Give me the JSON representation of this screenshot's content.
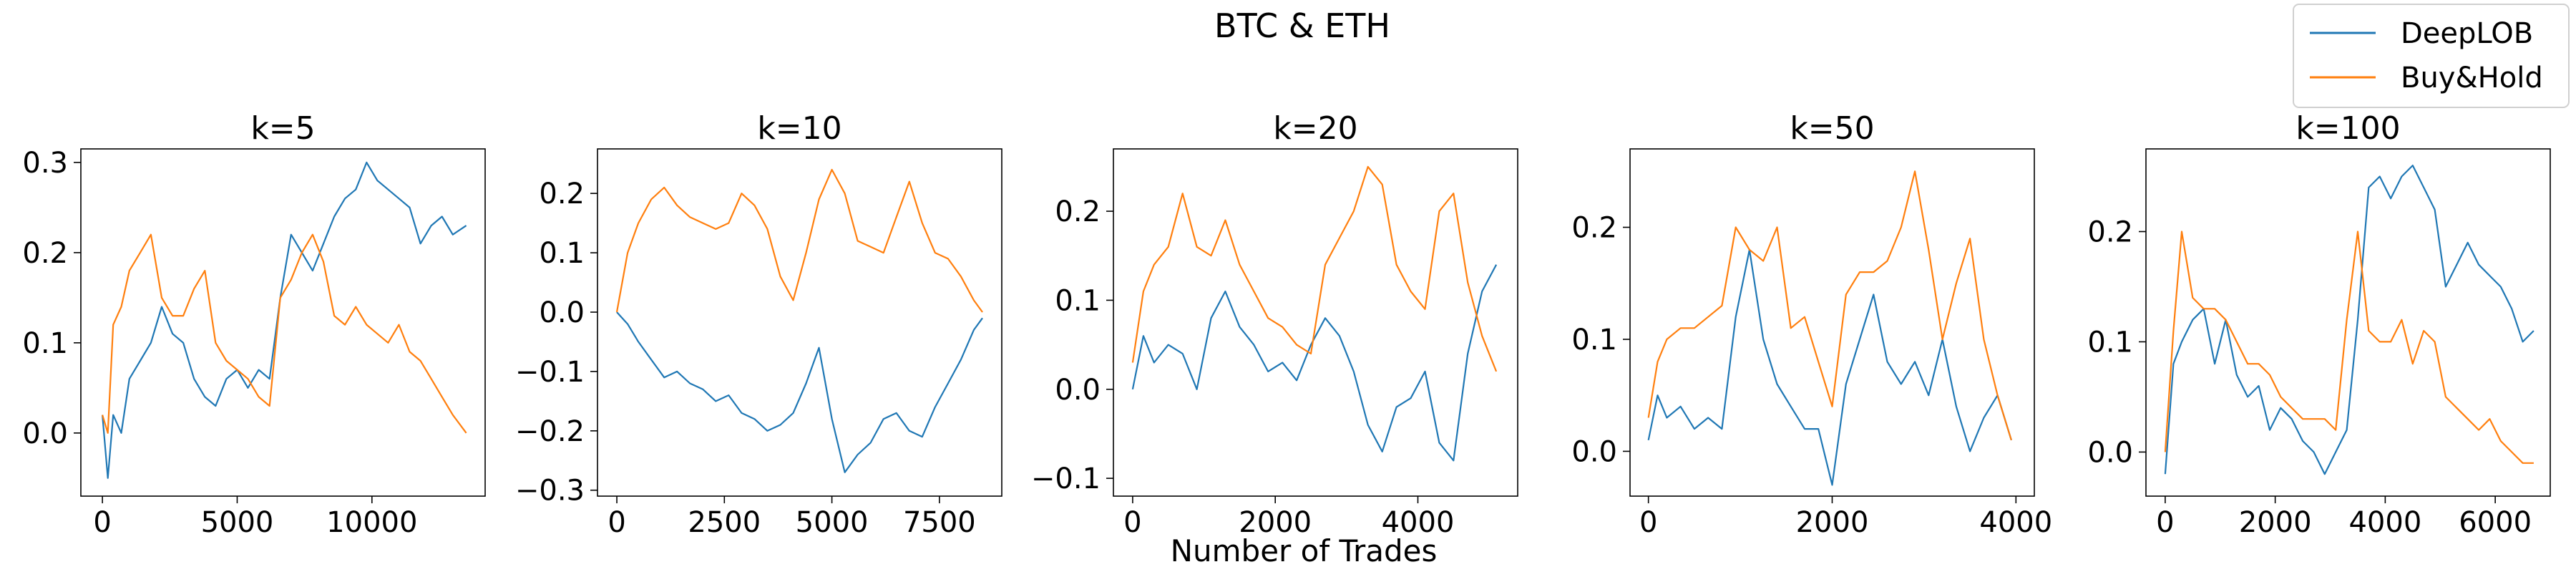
{
  "figure": {
    "title": "BTC & ETH",
    "xlabel": "Number of Trades",
    "legend": {
      "placement": "top-right",
      "entries": [
        {
          "name": "DeepLOB",
          "color": "#1f77b4"
        },
        {
          "name": "Buy&Hold",
          "color": "#ff7f0e"
        }
      ]
    }
  },
  "chart_data": [
    {
      "type": "line",
      "title": "k=5",
      "xlim": [
        -800,
        14200
      ],
      "ylim": [
        -0.07,
        0.315
      ],
      "xticks": [
        0,
        5000,
        10000
      ],
      "yticks": [
        0.0,
        0.1,
        0.2,
        0.3
      ],
      "ytick_labels": [
        "0.0",
        "0.1",
        "0.2",
        "0.3"
      ],
      "series": [
        {
          "name": "DeepLOB",
          "color": "#1f77b4",
          "x": [
            0,
            200,
            400,
            700,
            1000,
            1400,
            1800,
            2200,
            2600,
            3000,
            3400,
            3800,
            4200,
            4600,
            5000,
            5400,
            5800,
            6200,
            6600,
            7000,
            7400,
            7800,
            8200,
            8600,
            9000,
            9400,
            9800,
            10200,
            10600,
            11000,
            11400,
            11800,
            12200,
            12600,
            13000,
            13500
          ],
          "y": [
            0.02,
            -0.05,
            0.02,
            0.0,
            0.06,
            0.08,
            0.1,
            0.14,
            0.11,
            0.1,
            0.06,
            0.04,
            0.03,
            0.06,
            0.07,
            0.05,
            0.07,
            0.06,
            0.15,
            0.22,
            0.2,
            0.18,
            0.21,
            0.24,
            0.26,
            0.27,
            0.3,
            0.28,
            0.27,
            0.26,
            0.25,
            0.21,
            0.23,
            0.24,
            0.22,
            0.23
          ]
        },
        {
          "name": "Buy&Hold",
          "color": "#ff7f0e",
          "x": [
            0,
            200,
            400,
            700,
            1000,
            1400,
            1800,
            2200,
            2600,
            3000,
            3400,
            3800,
            4200,
            4600,
            5000,
            5400,
            5800,
            6200,
            6600,
            7000,
            7400,
            7800,
            8200,
            8600,
            9000,
            9400,
            9800,
            10200,
            10600,
            11000,
            11400,
            11800,
            12200,
            12600,
            13000,
            13500
          ],
          "y": [
            0.02,
            0.0,
            0.12,
            0.14,
            0.18,
            0.2,
            0.22,
            0.15,
            0.13,
            0.13,
            0.16,
            0.18,
            0.1,
            0.08,
            0.07,
            0.06,
            0.04,
            0.03,
            0.15,
            0.17,
            0.2,
            0.22,
            0.19,
            0.13,
            0.12,
            0.14,
            0.12,
            0.11,
            0.1,
            0.12,
            0.09,
            0.08,
            0.06,
            0.04,
            0.02,
            0.0
          ]
        }
      ]
    },
    {
      "type": "line",
      "title": "k=10",
      "xlim": [
        -450,
        8950
      ],
      "ylim": [
        -0.31,
        0.275
      ],
      "xticks": [
        0,
        2500,
        5000,
        7500
      ],
      "yticks": [
        -0.3,
        -0.2,
        -0.1,
        0.0,
        0.1,
        0.2
      ],
      "ytick_labels": [
        "−0.3",
        "−0.2",
        "−0.1",
        "0.0",
        "0.1",
        "0.2"
      ],
      "series": [
        {
          "name": "DeepLOB",
          "color": "#1f77b4",
          "x": [
            0,
            250,
            500,
            800,
            1100,
            1400,
            1700,
            2000,
            2300,
            2600,
            2900,
            3200,
            3500,
            3800,
            4100,
            4400,
            4700,
            5000,
            5300,
            5600,
            5900,
            6200,
            6500,
            6800,
            7100,
            7400,
            7700,
            8000,
            8300,
            8500
          ],
          "y": [
            0.0,
            -0.02,
            -0.05,
            -0.08,
            -0.11,
            -0.1,
            -0.12,
            -0.13,
            -0.15,
            -0.14,
            -0.17,
            -0.18,
            -0.2,
            -0.19,
            -0.17,
            -0.12,
            -0.06,
            -0.18,
            -0.27,
            -0.24,
            -0.22,
            -0.18,
            -0.17,
            -0.2,
            -0.21,
            -0.16,
            -0.12,
            -0.08,
            -0.03,
            -0.01
          ]
        },
        {
          "name": "Buy&Hold",
          "color": "#ff7f0e",
          "x": [
            0,
            250,
            500,
            800,
            1100,
            1400,
            1700,
            2000,
            2300,
            2600,
            2900,
            3200,
            3500,
            3800,
            4100,
            4400,
            4700,
            5000,
            5300,
            5600,
            5900,
            6200,
            6500,
            6800,
            7100,
            7400,
            7700,
            8000,
            8300,
            8500
          ],
          "y": [
            0.0,
            0.1,
            0.15,
            0.19,
            0.21,
            0.18,
            0.16,
            0.15,
            0.14,
            0.15,
            0.2,
            0.18,
            0.14,
            0.06,
            0.02,
            0.1,
            0.19,
            0.24,
            0.2,
            0.12,
            0.11,
            0.1,
            0.16,
            0.22,
            0.15,
            0.1,
            0.09,
            0.06,
            0.02,
            0.0
          ]
        }
      ]
    },
    {
      "type": "line",
      "title": "k=20",
      "xlim": [
        -270,
        5400
      ],
      "ylim": [
        -0.12,
        0.27
      ],
      "xticks": [
        0,
        2000,
        4000
      ],
      "yticks": [
        -0.1,
        0.0,
        0.1,
        0.2
      ],
      "ytick_labels": [
        "−0.1",
        "0.0",
        "0.1",
        "0.2"
      ],
      "series": [
        {
          "name": "DeepLOB",
          "color": "#1f77b4",
          "x": [
            0,
            150,
            300,
            500,
            700,
            900,
            1100,
            1300,
            1500,
            1700,
            1900,
            2100,
            2300,
            2500,
            2700,
            2900,
            3100,
            3300,
            3500,
            3700,
            3900,
            4100,
            4300,
            4500,
            4700,
            4900,
            5100
          ],
          "y": [
            0.0,
            0.06,
            0.03,
            0.05,
            0.04,
            0.0,
            0.08,
            0.11,
            0.07,
            0.05,
            0.02,
            0.03,
            0.01,
            0.05,
            0.08,
            0.06,
            0.02,
            -0.04,
            -0.07,
            -0.02,
            -0.01,
            0.02,
            -0.06,
            -0.08,
            0.04,
            0.11,
            0.14
          ]
        },
        {
          "name": "Buy&Hold",
          "color": "#ff7f0e",
          "x": [
            0,
            150,
            300,
            500,
            700,
            900,
            1100,
            1300,
            1500,
            1700,
            1900,
            2100,
            2300,
            2500,
            2700,
            2900,
            3100,
            3300,
            3500,
            3700,
            3900,
            4100,
            4300,
            4500,
            4700,
            4900,
            5100
          ],
          "y": [
            0.03,
            0.11,
            0.14,
            0.16,
            0.22,
            0.16,
            0.15,
            0.19,
            0.14,
            0.11,
            0.08,
            0.07,
            0.05,
            0.04,
            0.14,
            0.17,
            0.2,
            0.25,
            0.23,
            0.14,
            0.11,
            0.09,
            0.2,
            0.22,
            0.12,
            0.06,
            0.02
          ]
        }
      ]
    },
    {
      "type": "line",
      "title": "k=50",
      "xlim": [
        -200,
        4200
      ],
      "ylim": [
        -0.04,
        0.27
      ],
      "xticks": [
        0,
        2000,
        4000
      ],
      "yticks": [
        0.0,
        0.1,
        0.2
      ],
      "ytick_labels": [
        "0.0",
        "0.1",
        "0.2"
      ],
      "series": [
        {
          "name": "DeepLOB",
          "color": "#1f77b4",
          "x": [
            0,
            100,
            200,
            350,
            500,
            650,
            800,
            950,
            1100,
            1250,
            1400,
            1550,
            1700,
            1850,
            2000,
            2150,
            2300,
            2450,
            2600,
            2750,
            2900,
            3050,
            3200,
            3350,
            3500,
            3650,
            3800,
            3950
          ],
          "y": [
            0.01,
            0.05,
            0.03,
            0.04,
            0.02,
            0.03,
            0.02,
            0.12,
            0.18,
            0.1,
            0.06,
            0.04,
            0.02,
            0.02,
            -0.03,
            0.06,
            0.1,
            0.14,
            0.08,
            0.06,
            0.08,
            0.05,
            0.1,
            0.04,
            0.0,
            0.03,
            0.05,
            0.01
          ]
        },
        {
          "name": "Buy&Hold",
          "color": "#ff7f0e",
          "x": [
            0,
            100,
            200,
            350,
            500,
            650,
            800,
            950,
            1100,
            1250,
            1400,
            1550,
            1700,
            1850,
            2000,
            2150,
            2300,
            2450,
            2600,
            2750,
            2900,
            3050,
            3200,
            3350,
            3500,
            3650,
            3800,
            3950
          ],
          "y": [
            0.03,
            0.08,
            0.1,
            0.11,
            0.11,
            0.12,
            0.13,
            0.2,
            0.18,
            0.17,
            0.2,
            0.11,
            0.12,
            0.08,
            0.04,
            0.14,
            0.16,
            0.16,
            0.17,
            0.2,
            0.25,
            0.18,
            0.1,
            0.15,
            0.19,
            0.1,
            0.05,
            0.01
          ]
        }
      ]
    },
    {
      "type": "line",
      "title": "k=100",
      "xlim": [
        -350,
        7000
      ],
      "ylim": [
        -0.04,
        0.275
      ],
      "xticks": [
        0,
        2000,
        4000,
        6000
      ],
      "yticks": [
        0.0,
        0.1,
        0.2
      ],
      "ytick_labels": [
        "0.0",
        "0.1",
        "0.2"
      ],
      "series": [
        {
          "name": "DeepLOB",
          "color": "#1f77b4",
          "x": [
            0,
            150,
            300,
            500,
            700,
            900,
            1100,
            1300,
            1500,
            1700,
            1900,
            2100,
            2300,
            2500,
            2700,
            2900,
            3100,
            3300,
            3500,
            3700,
            3900,
            4100,
            4300,
            4500,
            4700,
            4900,
            5100,
            5300,
            5500,
            5700,
            5900,
            6100,
            6300,
            6500,
            6700
          ],
          "y": [
            -0.02,
            0.08,
            0.1,
            0.12,
            0.13,
            0.08,
            0.12,
            0.07,
            0.05,
            0.06,
            0.02,
            0.04,
            0.03,
            0.01,
            0.0,
            -0.02,
            0.0,
            0.02,
            0.12,
            0.24,
            0.25,
            0.23,
            0.25,
            0.26,
            0.24,
            0.22,
            0.15,
            0.17,
            0.19,
            0.17,
            0.16,
            0.15,
            0.13,
            0.1,
            0.11
          ]
        },
        {
          "name": "Buy&Hold",
          "color": "#ff7f0e",
          "x": [
            0,
            150,
            300,
            500,
            700,
            900,
            1100,
            1300,
            1500,
            1700,
            1900,
            2100,
            2300,
            2500,
            2700,
            2900,
            3100,
            3300,
            3500,
            3700,
            3900,
            4100,
            4300,
            4500,
            4700,
            4900,
            5100,
            5300,
            5500,
            5700,
            5900,
            6100,
            6300,
            6500,
            6700
          ],
          "y": [
            0.0,
            0.11,
            0.2,
            0.14,
            0.13,
            0.13,
            0.12,
            0.1,
            0.08,
            0.08,
            0.07,
            0.05,
            0.04,
            0.03,
            0.03,
            0.03,
            0.02,
            0.12,
            0.2,
            0.11,
            0.1,
            0.1,
            0.12,
            0.08,
            0.11,
            0.1,
            0.05,
            0.04,
            0.03,
            0.02,
            0.03,
            0.01,
            0.0,
            -0.01,
            -0.01
          ]
        }
      ]
    }
  ]
}
